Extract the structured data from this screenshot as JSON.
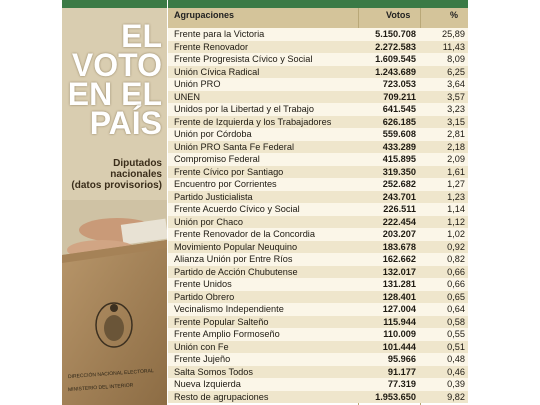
{
  "headline": [
    "EL",
    "VOTO",
    "EN EL",
    "PAÍS"
  ],
  "subtitle": [
    "Diputados",
    "nacionales",
    "(datos provisorios)"
  ],
  "photo_text": [
    "DIRECCIÓN NACIONAL ELECTORAL",
    "MINISTERIO DEL INTERIOR"
  ],
  "columns": {
    "name": "Agrupaciones",
    "votes": "Votos",
    "pct": "%"
  },
  "rows": [
    {
      "name": "Frente para la Victoria",
      "votes": "5.150.708",
      "pct": "25,89"
    },
    {
      "name": "Frente Renovador",
      "votes": "2.272.583",
      "pct": "11,43"
    },
    {
      "name": "Frente Progresista Cívico y Social",
      "votes": "1.609.545",
      "pct": "8,09"
    },
    {
      "name": "Unión Cívica Radical",
      "votes": "1.243.689",
      "pct": "6,25"
    },
    {
      "name": "Unión PRO",
      "votes": "723.053",
      "pct": "3,64"
    },
    {
      "name": "UNEN",
      "votes": "709.211",
      "pct": "3,57"
    },
    {
      "name": "Unidos por la Libertad y el Trabajo",
      "votes": "641.545",
      "pct": "3,23"
    },
    {
      "name": "Frente de Izquierda y los Trabajadores",
      "votes": "626.185",
      "pct": "3,15"
    },
    {
      "name": "Unión por Córdoba",
      "votes": "559.608",
      "pct": "2,81"
    },
    {
      "name": "Unión PRO Santa Fe Federal",
      "votes": "433.289",
      "pct": "2,18"
    },
    {
      "name": "Compromiso Federal",
      "votes": "415.895",
      "pct": "2,09"
    },
    {
      "name": "Frente Cívico por Santiago",
      "votes": "319.350",
      "pct": "1,61"
    },
    {
      "name": "Encuentro por Corrientes",
      "votes": "252.682",
      "pct": "1,27"
    },
    {
      "name": "Partido Justicialista",
      "votes": "243.701",
      "pct": "1,23"
    },
    {
      "name": "Frente Acuerdo Cívico y Social",
      "votes": "226.511",
      "pct": "1,14"
    },
    {
      "name": "Unión por Chaco",
      "votes": "222.454",
      "pct": "1,12"
    },
    {
      "name": "Frente Renovador de la Concordia",
      "votes": "203.207",
      "pct": "1,02"
    },
    {
      "name": "Movimiento Popular Neuquino",
      "votes": "183.678",
      "pct": "0,92"
    },
    {
      "name": "Alianza Unión por Entre Ríos",
      "votes": "162.662",
      "pct": "0,82"
    },
    {
      "name": "Partido de Acción Chubutense",
      "votes": "132.017",
      "pct": "0,66"
    },
    {
      "name": "Frente Unidos",
      "votes": "131.281",
      "pct": "0,66"
    },
    {
      "name": "Partido Obrero",
      "votes": "128.401",
      "pct": "0,65"
    },
    {
      "name": "Vecinalismo Independiente",
      "votes": "127.004",
      "pct": "0,64"
    },
    {
      "name": "Frente Popular Salteño",
      "votes": "115.944",
      "pct": "0,58"
    },
    {
      "name": "Frente Amplio Formoseño",
      "votes": "110.009",
      "pct": "0,55"
    },
    {
      "name": "Unión con Fe",
      "votes": "101.444",
      "pct": "0,51"
    },
    {
      "name": "Frente Jujeño",
      "votes": "95.966",
      "pct": "0,48"
    },
    {
      "name": "Salta Somos Todos",
      "votes": "91.177",
      "pct": "0,46"
    },
    {
      "name": "Nueva Izquierda",
      "votes": "77.319",
      "pct": "0,39"
    },
    {
      "name": "Resto de agrupaciones",
      "votes": "1.953.650",
      "pct": "9,82"
    }
  ]
}
